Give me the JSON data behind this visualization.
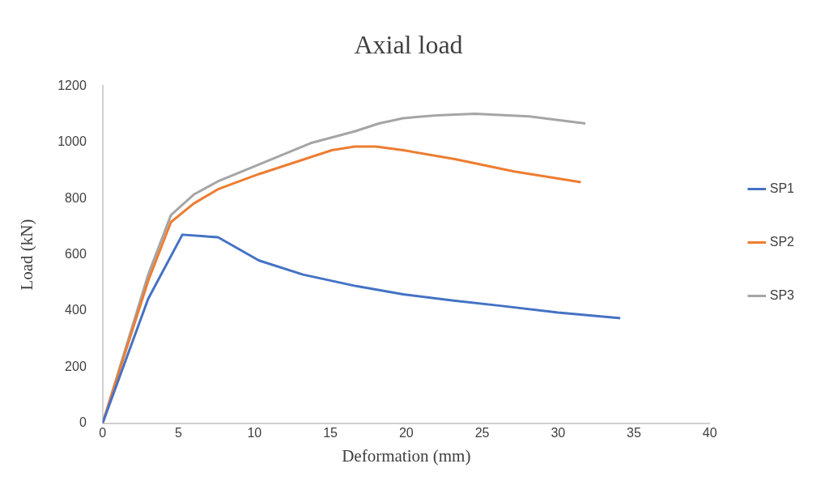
{
  "chart_data": {
    "type": "line",
    "title": "Axial load",
    "xlabel": "Deformation (mm)",
    "ylabel": "Load (kN)",
    "xlim": [
      0,
      40
    ],
    "xticks": [
      0,
      5,
      10,
      15,
      20,
      25,
      30,
      35,
      40
    ],
    "ylim": [
      0,
      1200
    ],
    "yticks": [
      0,
      200,
      400,
      600,
      800,
      1000,
      1200
    ],
    "grid": false,
    "legend": "right",
    "marker": "none",
    "line_style": "solid",
    "series": [
      {
        "name": "SP1",
        "color": "#4472c4",
        "x": [
          0,
          3,
          5.25,
          7.6,
          10.3,
          13.2,
          16.7,
          19.8,
          23,
          26.2,
          30,
          34.1
        ],
        "values": [
          0,
          443,
          671,
          662,
          579,
          529,
          488,
          459,
          437,
          418,
          394,
          374
        ]
      },
      {
        "name": "SP2",
        "color": "#ed7d31",
        "x": [
          0,
          3,
          4.5,
          6,
          7.6,
          10.3,
          15.1,
          16.6,
          18,
          19.8,
          23.2,
          27.1,
          31.5
        ],
        "values": [
          0,
          507,
          716,
          782,
          833,
          887,
          972,
          985,
          985,
          972,
          940,
          896,
          858
        ]
      },
      {
        "name": "SP3",
        "color": "#a5a5a5",
        "x": [
          0,
          3,
          4.5,
          6,
          7.6,
          10.3,
          13.7,
          16.6,
          18.2,
          19.8,
          22,
          24.5,
          28.1,
          31.8
        ],
        "values": [
          0,
          529,
          741,
          814,
          861,
          921,
          997,
          1039,
          1067,
          1086,
          1096,
          1102,
          1092,
          1067
        ]
      }
    ]
  }
}
